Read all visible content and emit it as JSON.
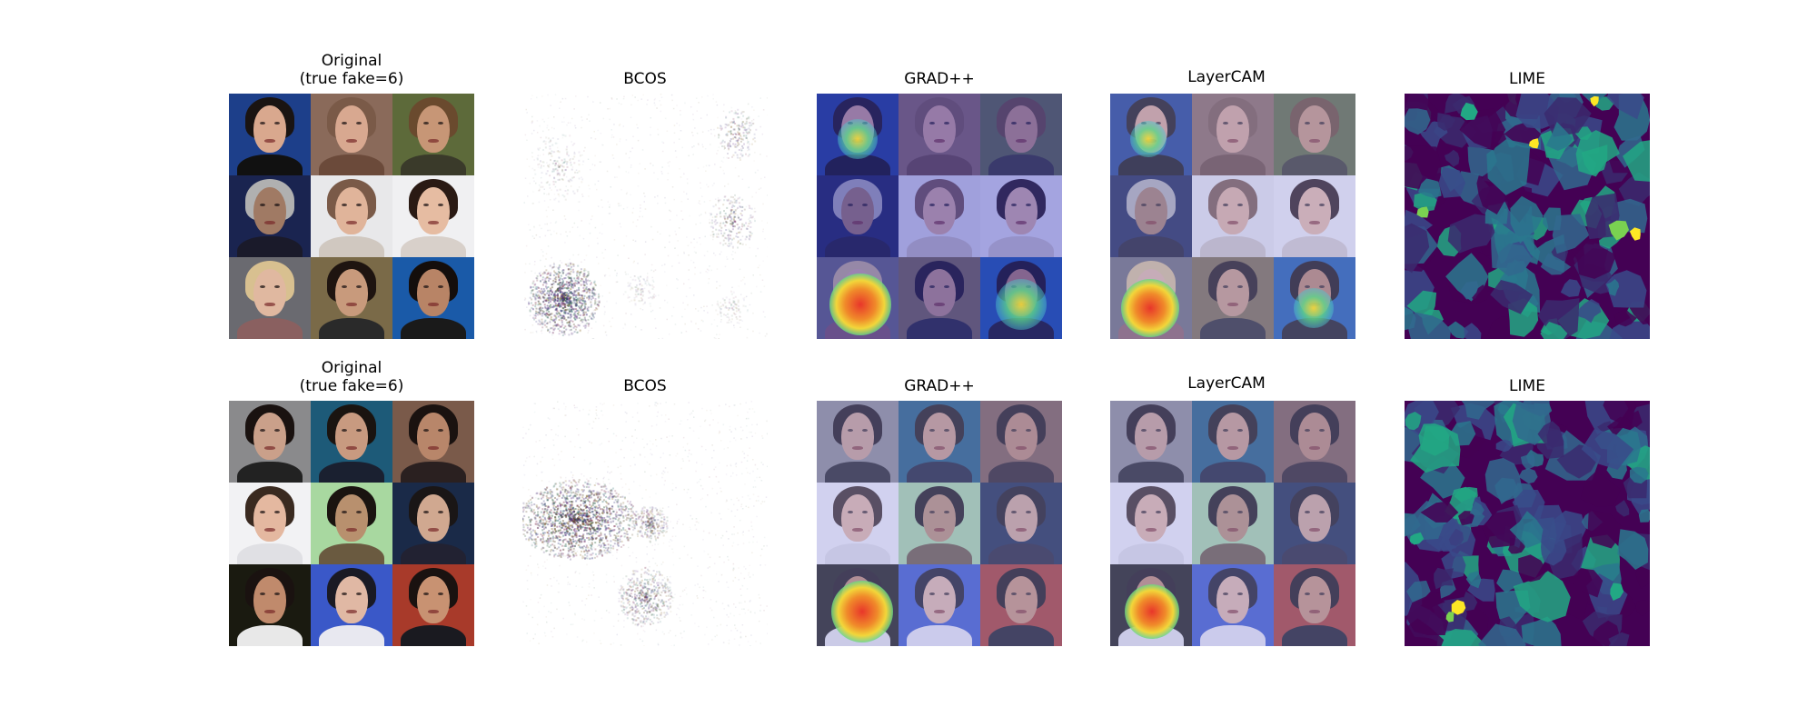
{
  "rows": [
    {
      "original_title": "Original\n(true fake=6)",
      "bcos_title": "BCOS",
      "gradpp_title": "GRAD++",
      "layercam_title": "LayerCAM",
      "lime_title": "LIME"
    },
    {
      "original_title": "Original\n(true fake=6)",
      "bcos_title": "BCOS",
      "gradpp_title": "GRAD++",
      "layercam_title": "LayerCAM",
      "lime_title": "LIME"
    }
  ],
  "colors": {
    "overlay_blue": "#3a3ab0",
    "heat_red": "#e8362a",
    "heat_yellow": "#f2d63a",
    "heat_green": "#5cd68a",
    "lime_dark": "#440154",
    "lime_mid": "#2a788e",
    "lime_teal": "#22a884",
    "lime_green": "#7ad151",
    "lime_yellow": "#fde725"
  }
}
